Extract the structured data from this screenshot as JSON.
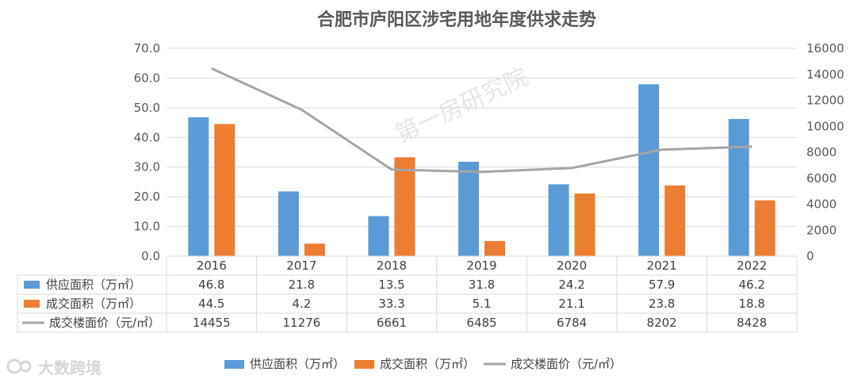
{
  "chart_data": {
    "type": "bar",
    "title": "合肥市庐阳区涉宅用地年度供求走势",
    "categories": [
      "2016",
      "2017",
      "2018",
      "2019",
      "2020",
      "2021",
      "2022"
    ],
    "series": [
      {
        "name": "供应面积（万㎡）",
        "type": "bar",
        "axis": "left",
        "color": "#5b9bd5",
        "values": [
          46.8,
          21.8,
          13.5,
          31.8,
          24.2,
          57.9,
          46.2
        ],
        "display": [
          "46.8",
          "21.8",
          "13.5",
          "31.8",
          "24.2",
          "57.9",
          "46.2"
        ]
      },
      {
        "name": "成交面积（万㎡）",
        "type": "bar",
        "axis": "left",
        "color": "#ed7d31",
        "values": [
          44.5,
          4.2,
          33.3,
          5.1,
          21.1,
          23.8,
          18.8
        ],
        "display": [
          "44.5",
          "4.2",
          "33.3",
          "5.1",
          "21.1",
          "23.8",
          "18.8"
        ]
      },
      {
        "name": "成交楼面价（元/㎡）",
        "type": "line",
        "axis": "right",
        "color": "#a5a5a5",
        "values": [
          14455,
          11276,
          6661,
          6485,
          6784,
          8202,
          8428
        ],
        "display": [
          "14455",
          "11276",
          "6661",
          "6485",
          "6784",
          "8202",
          "8428"
        ]
      }
    ],
    "y_left": {
      "range": [
        0,
        70
      ],
      "ticks": [
        "0.0",
        "10.0",
        "20.0",
        "30.0",
        "40.0",
        "50.0",
        "60.0",
        "70.0"
      ]
    },
    "y_right": {
      "range": [
        0,
        16000
      ],
      "ticks": [
        "0",
        "2000",
        "4000",
        "6000",
        "8000",
        "10000",
        "12000",
        "14000",
        "16000"
      ]
    },
    "grid": true,
    "legend": "bottom",
    "data_table": true
  },
  "watermark": "第一房研究院",
  "logo": {
    "text": "大数跨境"
  }
}
